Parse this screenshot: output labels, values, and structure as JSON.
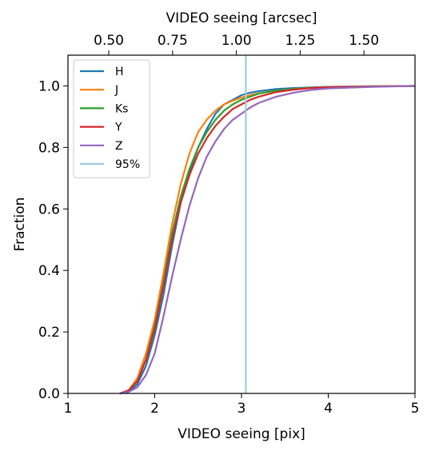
{
  "chart_data": {
    "type": "line",
    "xlabel": "VIDEO seeing [pix]",
    "ylabel": "Fraction",
    "top_xlabel": "VIDEO seeing [arcsec]",
    "xlim": [
      1,
      5
    ],
    "ylim": [
      0,
      1.1
    ],
    "xticks": [
      1,
      2,
      3,
      4,
      5
    ],
    "xtick_labels": [
      "1",
      "2",
      "3",
      "4",
      "5"
    ],
    "yticks": [
      0.0,
      0.2,
      0.4,
      0.6,
      0.8,
      1.0
    ],
    "ytick_labels": [
      "0.0",
      "0.2",
      "0.4",
      "0.6",
      "0.8",
      "1.0"
    ],
    "top_xtick_values_arcsec": [
      0.5,
      0.75,
      1.0,
      1.25,
      1.5
    ],
    "top_xtick_labels": [
      "0.50",
      "0.75",
      "1.00",
      "1.25",
      "1.50"
    ],
    "arcsec_per_pix": 0.34,
    "legend_position": "top-left",
    "series": [
      {
        "name": "H",
        "color": "#1f77b4",
        "x": [
          1.6,
          1.7,
          1.8,
          1.9,
          2.0,
          2.1,
          2.2,
          2.3,
          2.4,
          2.5,
          2.6,
          2.7,
          2.8,
          2.9,
          3.0,
          3.1,
          3.2,
          3.4,
          3.6,
          3.8,
          4.0,
          4.5,
          5.0
        ],
        "y": [
          0.0,
          0.005,
          0.03,
          0.09,
          0.19,
          0.32,
          0.48,
          0.62,
          0.72,
          0.8,
          0.86,
          0.91,
          0.94,
          0.955,
          0.97,
          0.978,
          0.983,
          0.99,
          0.993,
          0.995,
          0.997,
          0.999,
          1.0
        ]
      },
      {
        "name": "J",
        "color": "#ff7f0e",
        "x": [
          1.6,
          1.7,
          1.8,
          1.9,
          2.0,
          2.1,
          2.2,
          2.3,
          2.4,
          2.5,
          2.6,
          2.7,
          2.8,
          2.9,
          3.0,
          3.1,
          3.2,
          3.4,
          3.6,
          3.8,
          4.0,
          4.5,
          5.0
        ],
        "y": [
          0.0,
          0.01,
          0.05,
          0.13,
          0.24,
          0.39,
          0.55,
          0.68,
          0.78,
          0.85,
          0.89,
          0.92,
          0.94,
          0.952,
          0.962,
          0.97,
          0.976,
          0.985,
          0.99,
          0.994,
          0.996,
          0.999,
          1.0
        ]
      },
      {
        "name": "Ks",
        "color": "#2ca02c",
        "x": [
          1.6,
          1.7,
          1.8,
          1.9,
          2.0,
          2.1,
          2.2,
          2.3,
          2.4,
          2.5,
          2.6,
          2.7,
          2.8,
          2.9,
          3.0,
          3.1,
          3.2,
          3.4,
          3.6,
          3.8,
          4.0,
          4.5,
          5.0
        ],
        "y": [
          0.0,
          0.01,
          0.04,
          0.11,
          0.22,
          0.36,
          0.52,
          0.64,
          0.73,
          0.8,
          0.85,
          0.89,
          0.92,
          0.94,
          0.955,
          0.965,
          0.975,
          0.985,
          0.99,
          0.994,
          0.996,
          0.998,
          1.0
        ]
      },
      {
        "name": "Y",
        "color": "#d62728",
        "x": [
          1.6,
          1.7,
          1.8,
          1.9,
          2.0,
          2.1,
          2.2,
          2.3,
          2.4,
          2.5,
          2.6,
          2.7,
          2.8,
          2.9,
          3.0,
          3.1,
          3.2,
          3.4,
          3.6,
          3.8,
          4.0,
          4.5,
          5.0
        ],
        "y": [
          0.0,
          0.01,
          0.04,
          0.11,
          0.21,
          0.35,
          0.5,
          0.62,
          0.71,
          0.78,
          0.83,
          0.87,
          0.9,
          0.925,
          0.94,
          0.955,
          0.965,
          0.98,
          0.988,
          0.993,
          0.996,
          0.998,
          1.0
        ]
      },
      {
        "name": "Z",
        "color": "#9467bd",
        "x": [
          1.6,
          1.7,
          1.8,
          1.9,
          2.0,
          2.1,
          2.2,
          2.3,
          2.4,
          2.5,
          2.6,
          2.7,
          2.8,
          2.9,
          3.0,
          3.1,
          3.2,
          3.4,
          3.6,
          3.8,
          4.0,
          4.5,
          5.0
        ],
        "y": [
          0.0,
          0.005,
          0.02,
          0.06,
          0.13,
          0.25,
          0.38,
          0.5,
          0.61,
          0.7,
          0.77,
          0.82,
          0.86,
          0.89,
          0.91,
          0.93,
          0.945,
          0.965,
          0.978,
          0.987,
          0.992,
          0.997,
          1.0
        ]
      }
    ],
    "vline": {
      "name": "95%",
      "x": 3.05,
      "color": "#9ecae1"
    }
  }
}
